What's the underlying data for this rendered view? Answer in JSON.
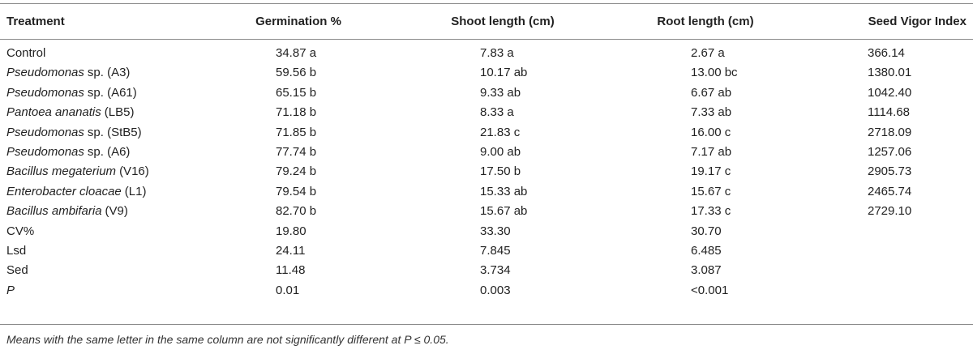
{
  "table": {
    "header": [
      "Treatment",
      "Germination %",
      "Shoot length (cm)",
      "Root length (cm)",
      "Seed Vigor Index"
    ],
    "rows": [
      {
        "treatment": "Control",
        "values": [
          "34.87 a",
          "7.83 a",
          "2.67 a",
          "366.14"
        ]
      },
      {
        "treatment_italic": "Pseudomonas",
        "treatment": "sp. (A3)",
        "values": [
          "59.56 b",
          "10.17 ab",
          "13.00 bc",
          "1380.01"
        ]
      },
      {
        "treatment_italic": "Pseudomonas",
        "treatment": "sp. (A61)",
        "values": [
          "65.15 b",
          "9.33 ab",
          "6.67 ab",
          "1042.40"
        ]
      },
      {
        "treatment_italic": "Pantoea ananatis",
        "treatment": "(LB5)",
        "values": [
          "71.18 b",
          "8.33 a",
          "7.33 ab",
          "1114.68"
        ]
      },
      {
        "treatment_italic": "Pseudomonas",
        "treatment": "sp. (StB5)",
        "values": [
          "71.85 b",
          "21.83 c",
          "16.00 c",
          "2718.09"
        ]
      },
      {
        "treatment_italic": "Pseudomonas",
        "treatment": "sp. (A6)",
        "values": [
          "77.74 b",
          "9.00 ab",
          "7.17 ab",
          "1257.06"
        ]
      },
      {
        "treatment_italic": "Bacillus megaterium",
        "treatment": "(V16)",
        "values": [
          "79.24 b",
          "17.50 b",
          "19.17 c",
          "2905.73"
        ]
      },
      {
        "treatment_italic": "Enterobacter cloacae",
        "treatment": "(L1)",
        "values": [
          "79.54 b",
          "15.33 ab",
          "15.67 c",
          "2465.74"
        ]
      },
      {
        "treatment_italic": "Bacillus ambifaria",
        "treatment": "(V9)",
        "values": [
          "82.70 b",
          "15.67 ab",
          "17.33 c",
          "2729.10"
        ]
      },
      {
        "treatment": "CV%",
        "values": [
          "19.80",
          "33.30",
          "30.70"
        ]
      },
      {
        "treatment": "Lsd",
        "values": [
          "24.11",
          "7.845",
          "6.485"
        ]
      },
      {
        "treatment": "Sed",
        "values": [
          "11.48",
          "3.734",
          "3.087"
        ]
      },
      {
        "treatment_italic": "P",
        "values": [
          "0.01",
          "0.003",
          "<0.001"
        ]
      }
    ],
    "footnote": "Means with the same letter in the same column are not significantly different at P ≤ 0.05."
  }
}
